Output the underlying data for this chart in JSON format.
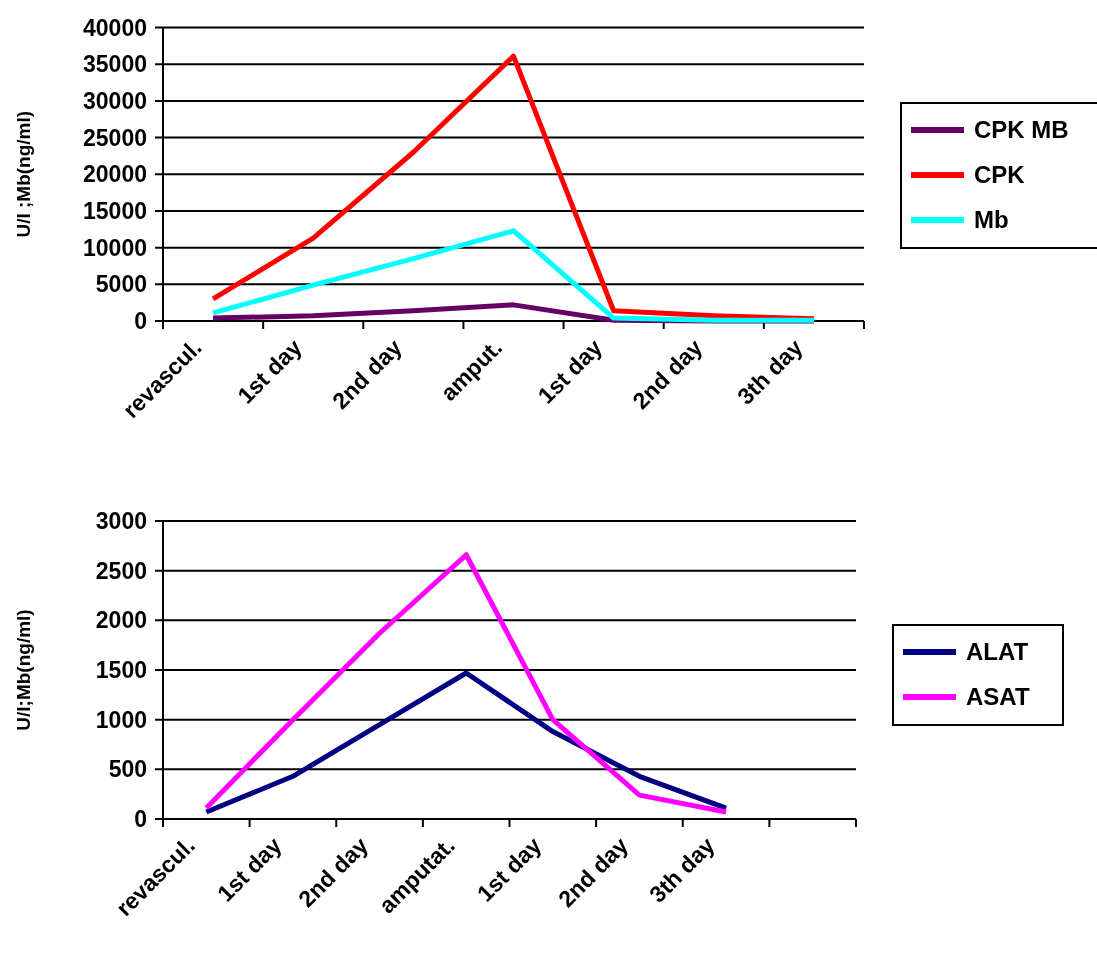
{
  "chart_data": [
    {
      "type": "line",
      "ylabel": "U/I ;Mb(ng/ml)",
      "categories": [
        "revascul.",
        "1st day",
        "2nd day",
        "amput.",
        "1st day",
        "2nd day",
        "3th day"
      ],
      "series": [
        {
          "name": "CPK MB",
          "color": "#660066",
          "values": [
            400,
            700,
            1400,
            2200,
            100,
            0,
            0
          ]
        },
        {
          "name": "CPK",
          "color": "#ff0000",
          "values": [
            3000,
            11300,
            23000,
            36100,
            1400,
            700,
            300
          ]
        },
        {
          "name": "Mb",
          "color": "#00ffff",
          "values": [
            1100,
            4900,
            8500,
            12300,
            400,
            100,
            100
          ]
        }
      ],
      "ylim": [
        0,
        40000
      ],
      "yticks": [
        0,
        5000,
        10000,
        15000,
        20000,
        25000,
        30000,
        35000,
        40000
      ],
      "grid": "y",
      "legend": "right"
    },
    {
      "type": "line",
      "ylabel": "U/I;Mb(ng/ml)",
      "categories": [
        "revascul.",
        "1st day",
        "2nd day",
        "amputat.",
        "1st day",
        "2nd day",
        "3th day",
        null
      ],
      "series": [
        {
          "name": "ALAT",
          "color": "#000080",
          "values": [
            70,
            430,
            950,
            1470,
            880,
            430,
            110,
            null
          ]
        },
        {
          "name": "ASAT",
          "color": "#ff00ff",
          "values": [
            110,
            1000,
            1870,
            2660,
            1000,
            240,
            70,
            null
          ]
        }
      ],
      "ylim": [
        0,
        3000
      ],
      "yticks": [
        0,
        500,
        1000,
        1500,
        2000,
        2500,
        3000
      ],
      "grid": "y",
      "legend": "right"
    }
  ]
}
